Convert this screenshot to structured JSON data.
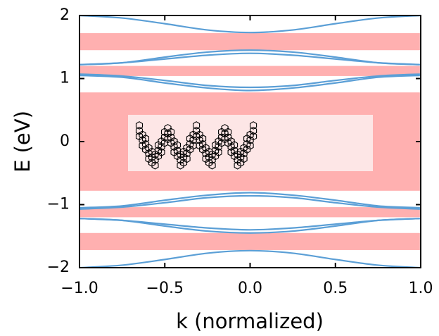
{
  "chart_data": {
    "type": "line",
    "xlabel": "k (normalized)",
    "ylabel": "E (eV)",
    "x": [
      -1,
      -0.75,
      -0.5,
      -0.25,
      0,
      0.25,
      0.5,
      0.75,
      1
    ],
    "xlim": [
      -1,
      1
    ],
    "xticks": [
      {
        "value": -1,
        "label": "−1.0"
      },
      {
        "value": -0.5,
        "label": "−0.5"
      },
      {
        "value": 0,
        "label": "0.0"
      },
      {
        "value": 0.5,
        "label": "0.5"
      },
      {
        "value": 1,
        "label": "1.0"
      }
    ],
    "ylim": [
      -2,
      2
    ],
    "yticks": [
      {
        "value": -2,
        "label": "−2"
      },
      {
        "value": -1,
        "label": "−1"
      },
      0,
      1,
      2
    ],
    "shaded_bands": [
      [
        1.45,
        1.72
      ],
      [
        1.04,
        1.2
      ],
      [
        -0.78,
        0.78
      ],
      [
        -1.2,
        -1.04
      ],
      [
        -1.72,
        -1.45
      ]
    ],
    "shade_color": "#ffb0b0",
    "series": [
      {
        "color": "#5b9fd6",
        "values": [
          2.0,
          1.96,
          1.87,
          1.77,
          1.73,
          1.77,
          1.87,
          1.96,
          2.0
        ]
      },
      {
        "color": "#5b9fd6",
        "values": [
          1.22,
          1.25,
          1.34,
          1.42,
          1.45,
          1.42,
          1.34,
          1.25,
          1.22
        ]
      },
      {
        "color": "#5b9fd6",
        "values": [
          1.22,
          1.25,
          1.31,
          1.37,
          1.4,
          1.37,
          1.31,
          1.25,
          1.22
        ]
      },
      {
        "color": "#5b9fd6",
        "values": [
          1.07,
          1.04,
          0.97,
          0.89,
          0.86,
          0.89,
          0.97,
          1.04,
          1.07
        ]
      },
      {
        "color": "#5b9fd6",
        "values": [
          1.05,
          1.02,
          0.93,
          0.85,
          0.81,
          0.85,
          0.93,
          1.02,
          1.05
        ]
      },
      {
        "color": "#5b9fd6",
        "values": [
          -1.05,
          -1.02,
          -0.93,
          -0.85,
          -0.81,
          -0.85,
          -0.93,
          -1.02,
          -1.05
        ]
      },
      {
        "color": "#5b9fd6",
        "values": [
          -1.07,
          -1.04,
          -0.97,
          -0.89,
          -0.86,
          -0.89,
          -0.97,
          -1.04,
          -1.07
        ]
      },
      {
        "color": "#5b9fd6",
        "values": [
          -1.22,
          -1.25,
          -1.31,
          -1.37,
          -1.4,
          -1.37,
          -1.31,
          -1.25,
          -1.22
        ]
      },
      {
        "color": "#5b9fd6",
        "values": [
          -1.22,
          -1.25,
          -1.34,
          -1.42,
          -1.45,
          -1.42,
          -1.34,
          -1.25,
          -1.22
        ]
      },
      {
        "color": "#5b9fd6",
        "values": [
          -2.0,
          -1.96,
          -1.87,
          -1.77,
          -1.73,
          -1.77,
          -1.87,
          -1.96,
          -2.0
        ]
      }
    ]
  }
}
